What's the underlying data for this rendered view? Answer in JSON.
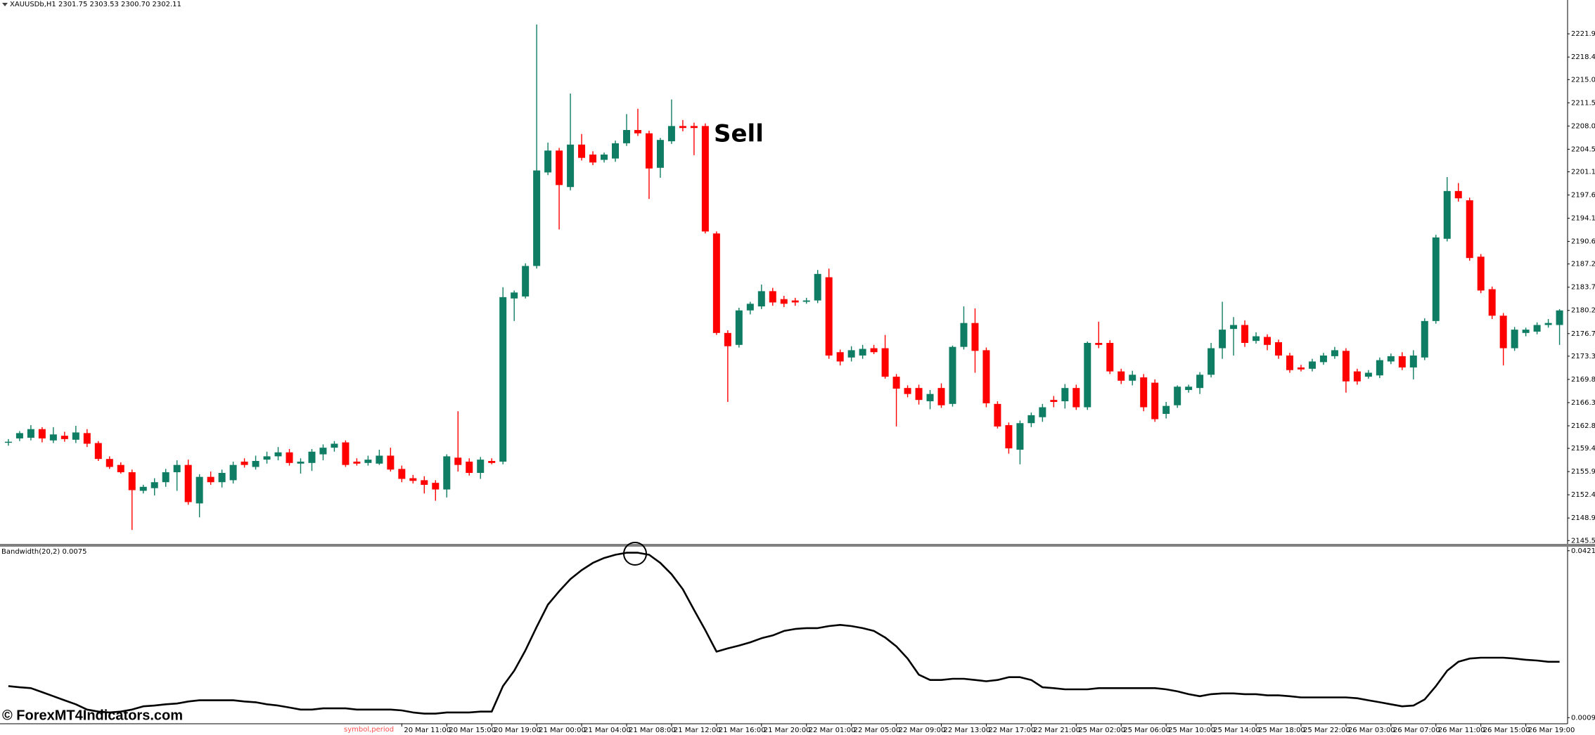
{
  "chart_data": [
    {
      "type": "candlestick",
      "title": "XAUUSDb,H1  2301.75 2303.53 2300.70 2302.11",
      "annotation": "Sell",
      "up_color": "#0f7d63",
      "down_color": "#ff0000",
      "categories": [
        null,
        null,
        null,
        null,
        null,
        null,
        null,
        null,
        null,
        null,
        null,
        null,
        null,
        null,
        null,
        null,
        null,
        null,
        null,
        null,
        null,
        null,
        null,
        null,
        null,
        null,
        null,
        null,
        null,
        null,
        null,
        null,
        null,
        null,
        null,
        "20 Mar 11:00",
        null,
        null,
        null,
        "20 Mar 15:00",
        null,
        null,
        null,
        "20 Mar 19:00",
        null,
        null,
        null,
        "21 Mar 00:00",
        null,
        null,
        null,
        "21 Mar 04:00",
        null,
        null,
        null,
        "21 Mar 08:00",
        null,
        null,
        null,
        "21 Mar 12:00",
        null,
        null,
        null,
        "21 Mar 16:00",
        null,
        null,
        null,
        "21 Mar 20:00",
        null,
        null,
        null,
        "22 Mar 01:00",
        null,
        null,
        null,
        "22 Mar 05:00",
        null,
        null,
        null,
        "22 Mar 09:00",
        null,
        null,
        null,
        "22 Mar 13:00",
        null,
        null,
        null,
        "22 Mar 17:00",
        null,
        null,
        null,
        "22 Mar 21:00",
        null,
        null,
        null,
        "25 Mar 02:00",
        null,
        null,
        null,
        "25 Mar 06:00",
        null,
        null,
        null,
        "25 Mar 10:00",
        null,
        null,
        null,
        "25 Mar 14:00",
        null,
        null,
        null,
        "25 Mar 18:00",
        null,
        null,
        null,
        "25 Mar 22:00",
        null,
        null,
        null,
        "26 Mar 03:00",
        null,
        null,
        null,
        "26 Mar 07:00",
        null,
        null,
        null,
        "26 Mar 11:00",
        null,
        null,
        null,
        "26 Mar 15:00",
        null,
        null,
        null,
        "26 Mar 19:00",
        null,
        null,
        null
      ],
      "open": [
        2160.3,
        2160.9,
        2161.0,
        2162.3,
        2160.6,
        2161.3,
        2160.7,
        2161.7,
        2160.2,
        2157.8,
        2156.9,
        2155.8,
        2153.0,
        2153.4,
        2154.3,
        2155.8,
        2156.9,
        2151.1,
        2155.1,
        2154.3,
        2154.6,
        2157.4,
        2156.6,
        2157.7,
        2158.2,
        2158.8,
        2157.1,
        2157.2,
        2158.5,
        2159.5,
        2160.3,
        2157.4,
        2157.2,
        2157.1,
        2158.3,
        2156.3,
        2154.9,
        2154.6,
        2154.2,
        2153.2,
        2158.0,
        2157.4,
        2155.7,
        2157.5,
        2157.4,
        2182.0,
        2182.3,
        2186.9,
        2201.0,
        2204.3,
        2198.8,
        2205.2,
        2203.7,
        2202.9,
        2203.1,
        2205.4,
        2207.4,
        2206.9,
        2201.7,
        2205.7,
        2208.0,
        2208.0,
        2208.0,
        2191.8,
        2176.8,
        2175.0,
        2180.2,
        2180.8,
        2183.1,
        2181.9,
        2181.7,
        2181.5,
        2181.7,
        2185.2,
        2173.9,
        2173.1,
        2173.4,
        2174.5,
        2174.5,
        2170.2,
        2168.5,
        2168.5,
        2166.5,
        2168.5,
        2166.1,
        2174.7,
        2178.3,
        2174.2,
        2166.1,
        2162.9,
        2159.2,
        2163.2,
        2164.1,
        2166.7,
        2166.5,
        2168.5,
        2165.6,
        2175.3,
        2175.3,
        2171.0,
        2169.6,
        2170.1,
        2169.3,
        2164.6,
        2165.9,
        2168.2,
        2168.5,
        2170.5,
        2174.5,
        2177.4,
        2178.0,
        2175.6,
        2176.2,
        2175.4,
        2173.4,
        2171.6,
        2171.4,
        2172.4,
        2173.3,
        2174.1,
        2171.0,
        2170.2,
        2170.4,
        2172.5,
        2173.3,
        2171.6,
        2173.1,
        2178.6,
        2191.0,
        2198.2,
        2196.8,
        2188.3,
        2183.4,
        2179.4,
        2174.5,
        2176.8,
        2177.0,
        2178.0,
        2178.0
      ],
      "high": [
        2160.8,
        2162.0,
        2162.9,
        2162.6,
        2162.6,
        2161.9,
        2162.8,
        2162.3,
        2160.5,
        2158.2,
        2157.3,
        2156.2,
        2153.9,
        2154.9,
        2156.3,
        2157.6,
        2157.7,
        2155.5,
        2155.9,
        2156.2,
        2157.4,
        2157.9,
        2158.3,
        2158.9,
        2159.6,
        2159.3,
        2157.9,
        2159.3,
        2160.0,
        2160.5,
        2160.6,
        2157.9,
        2158.3,
        2159.2,
        2159.5,
        2156.8,
        2155.4,
        2155.2,
        2154.6,
        2158.5,
        2165.0,
        2157.9,
        2158.1,
        2157.9,
        2183.7,
        2183.2,
        2187.3,
        2223.3,
        2205.5,
        2204.7,
        2212.9,
        2206.8,
        2204.2,
        2204.0,
        2205.8,
        2209.8,
        2210.6,
        2207.3,
        2206.2,
        2212.0,
        2208.9,
        2208.5,
        2208.4,
        2192.1,
        2177.2,
        2180.6,
        2181.5,
        2184.1,
        2183.6,
        2182.4,
        2182.1,
        2182.1,
        2186.3,
        2186.5,
        2174.3,
        2174.8,
        2175.0,
        2175.0,
        2176.5,
        2170.6,
        2168.9,
        2169.0,
        2168.2,
        2169.2,
        2174.9,
        2180.8,
        2180.5,
        2174.6,
        2166.5,
        2163.3,
        2163.6,
        2164.8,
        2166.1,
        2167.3,
        2169.1,
        2169.0,
        2175.5,
        2178.5,
        2175.7,
        2171.4,
        2171.1,
        2170.6,
        2169.8,
        2166.4,
        2168.9,
        2169.0,
        2170.9,
        2175.3,
        2181.5,
        2179.2,
        2178.7,
        2176.9,
        2176.6,
        2175.8,
        2173.8,
        2172.0,
        2172.9,
        2173.8,
        2174.7,
        2174.5,
        2171.4,
        2171.2,
        2173.1,
        2173.7,
        2173.9,
        2174.2,
        2179.0,
        2191.6,
        2200.3,
        2199.4,
        2197.2,
        2188.7,
        2183.8,
        2179.8,
        2177.7,
        2177.6,
        2178.4,
        2178.9,
        2180.4
      ],
      "low": [
        2159.8,
        2160.5,
        2160.6,
        2160.3,
        2160.2,
        2160.4,
        2160.2,
        2159.6,
        2157.5,
        2156.3,
        2155.6,
        2147.1,
        2152.6,
        2152.3,
        2153.6,
        2153.0,
        2150.9,
        2149.0,
        2153.9,
        2153.5,
        2154.1,
        2156.5,
        2156.2,
        2157.1,
        2157.6,
        2156.8,
        2155.6,
        2156.0,
        2157.6,
        2158.9,
        2156.6,
        2156.8,
        2156.8,
        2156.9,
        2155.9,
        2154.3,
        2154.1,
        2152.6,
        2151.5,
        2152.0,
        2155.9,
        2155.3,
        2154.8,
        2157.0,
        2157.0,
        2178.6,
        2182.0,
        2186.5,
        2200.6,
        2192.4,
        2198.3,
        2202.8,
        2202.1,
        2202.5,
        2202.6,
        2205.0,
        2206.5,
        2197.0,
        2200.2,
        2205.3,
        2207.2,
        2203.6,
        2191.8,
        2176.5,
        2166.4,
        2174.6,
        2179.6,
        2180.4,
        2180.9,
        2180.7,
        2180.9,
        2181.2,
        2181.3,
        2172.9,
        2171.9,
        2172.5,
        2172.9,
        2173.6,
        2169.9,
        2162.7,
        2167.1,
        2166.0,
        2165.3,
        2165.5,
        2165.7,
        2174.3,
        2170.8,
        2165.6,
        2162.4,
        2158.6,
        2157.0,
        2162.6,
        2163.4,
        2165.6,
        2165.4,
        2165.2,
        2165.2,
        2174.5,
        2170.6,
        2169.1,
        2168.9,
        2165.0,
        2163.4,
        2163.9,
        2165.5,
        2167.8,
        2167.6,
        2170.1,
        2172.9,
        2173.4,
        2174.7,
        2175.2,
        2174.2,
        2172.9,
        2170.8,
        2171.0,
        2171.0,
        2172.0,
        2172.9,
        2167.8,
        2169.0,
        2169.9,
        2170.0,
        2172.1,
        2171.2,
        2169.8,
        2172.7,
        2178.2,
        2190.6,
        2196.6,
        2187.7,
        2182.8,
        2178.9,
        2171.9,
        2174.1,
        2176.3,
        2176.6,
        2177.6,
        2175.0
      ],
      "close": [
        2160.4,
        2161.7,
        2162.3,
        2160.9,
        2161.5,
        2160.8,
        2161.8,
        2160.1,
        2157.8,
        2156.6,
        2155.8,
        2153.1,
        2153.6,
        2154.3,
        2155.8,
        2156.9,
        2151.3,
        2155.1,
        2154.3,
        2155.7,
        2156.9,
        2156.9,
        2157.5,
        2158.2,
        2158.8,
        2157.2,
        2157.4,
        2158.9,
        2159.5,
        2160.1,
        2156.9,
        2157.1,
        2157.7,
        2158.3,
        2156.2,
        2154.8,
        2154.5,
        2153.9,
        2153.2,
        2158.2,
        2156.9,
        2155.7,
        2157.7,
        2157.2,
        2182.2,
        2182.9,
        2186.9,
        2201.3,
        2204.3,
        2199.1,
        2205.2,
        2203.2,
        2202.5,
        2203.7,
        2205.4,
        2207.4,
        2206.9,
        2201.6,
        2205.9,
        2208.0,
        2207.7,
        2207.7,
        2192.1,
        2176.8,
        2174.8,
        2180.2,
        2181.2,
        2183.1,
        2181.4,
        2181.2,
        2181.4,
        2181.7,
        2185.7,
        2173.4,
        2172.5,
        2174.2,
        2174.4,
        2173.9,
        2170.2,
        2168.4,
        2167.6,
        2166.7,
        2167.6,
        2165.9,
        2174.7,
        2178.3,
        2174.1,
        2166.2,
        2162.7,
        2159.4,
        2163.2,
        2164.4,
        2165.6,
        2166.4,
        2168.5,
        2165.6,
        2175.3,
        2175.0,
        2171.0,
        2169.6,
        2170.5,
        2165.6,
        2163.8,
        2165.8,
        2168.7,
        2168.7,
        2170.5,
        2174.5,
        2177.3,
        2178.0,
        2175.3,
        2176.3,
        2175.0,
        2173.4,
        2171.2,
        2171.3,
        2172.5,
        2173.4,
        2174.2,
        2169.5,
        2169.5,
        2170.8,
        2172.7,
        2173.3,
        2171.6,
        2173.4,
        2178.6,
        2191.2,
        2198.2,
        2197.1,
        2188.1,
        2183.2,
        2179.4,
        2174.5,
        2177.3,
        2177.3,
        2178.0,
        2178.3,
        2180.2
      ],
      "ylim": [
        2145.0,
        2227.0
      ],
      "yticks": [
        2221.9,
        2218.4,
        {
          "value": 2215,
          "label": "2215.0"
        },
        2211.5,
        {
          "value": 2208,
          "label": "2208.0"
        },
        2204.5,
        2201.1,
        2197.6,
        2194.1,
        2190.6,
        2187.2,
        2183.7,
        2180.2,
        2176.7,
        2173.3,
        2169.8,
        2166.3,
        2162.8,
        2159.4,
        2155.9,
        2152.4,
        2148.9,
        2145.5
      ]
    },
    {
      "type": "line",
      "title": "Bandwidth(20,2) 0.0075",
      "color": "#000000",
      "values": [
        0.0087,
        0.0084,
        0.0082,
        0.0072,
        0.0062,
        0.0052,
        0.0042,
        0.0029,
        0.0024,
        0.0022,
        0.0024,
        0.0029,
        0.0037,
        0.0039,
        0.0042,
        0.0044,
        0.0049,
        0.0052,
        0.0052,
        0.0052,
        0.0052,
        0.0049,
        0.0047,
        0.0042,
        0.0039,
        0.0034,
        0.0029,
        0.0029,
        0.0032,
        0.0032,
        0.0032,
        0.0029,
        0.0029,
        0.0029,
        0.0029,
        0.0027,
        0.0022,
        0.0019,
        0.0019,
        0.0022,
        0.0022,
        0.0022,
        0.0024,
        0.0024,
        0.0087,
        0.0125,
        0.0175,
        0.0233,
        0.0288,
        0.0321,
        0.0351,
        0.0373,
        0.0391,
        0.0403,
        0.0411,
        0.0416,
        0.0416,
        0.0411,
        0.0391,
        0.0363,
        0.0326,
        0.0275,
        0.0225,
        0.0172,
        0.018,
        0.0187,
        0.0195,
        0.0205,
        0.0212,
        0.0223,
        0.0228,
        0.023,
        0.023,
        0.0235,
        0.0238,
        0.0235,
        0.023,
        0.0223,
        0.0207,
        0.0185,
        0.0155,
        0.0115,
        0.0102,
        0.0102,
        0.0105,
        0.0105,
        0.0102,
        0.0099,
        0.0102,
        0.0109,
        0.0109,
        0.0102,
        0.0084,
        0.0082,
        0.0079,
        0.0079,
        0.0079,
        0.0082,
        0.0082,
        0.0082,
        0.0082,
        0.0082,
        0.0082,
        0.0079,
        0.0074,
        0.0067,
        0.0062,
        0.0067,
        0.0069,
        0.0069,
        0.0067,
        0.0067,
        0.0064,
        0.0064,
        0.0062,
        0.0059,
        0.0059,
        0.0059,
        0.0059,
        0.0059,
        0.0057,
        0.0052,
        0.0047,
        0.0042,
        0.0037,
        0.0039,
        0.0054,
        0.0087,
        0.0125,
        0.0147,
        0.0155,
        0.0157,
        0.0157,
        0.0157,
        0.0155,
        0.0152,
        0.015,
        0.0147,
        0.0147
      ],
      "ylim": [
        -0.0006,
        0.0431
      ],
      "yticks": [
        0.0421,
        0.0009
      ]
    }
  ],
  "axis_note": "symbol,period",
  "watermark": "© ForexMT4Indicators.com"
}
